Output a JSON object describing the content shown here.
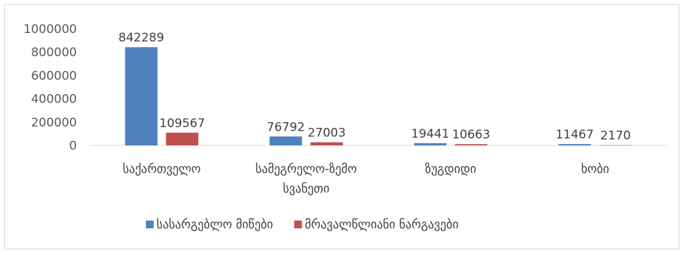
{
  "chart_data": {
    "type": "bar",
    "categories": [
      [
        "საქართველო"
      ],
      [
        "სამეგრელო-ზემო",
        "სვანეთი"
      ],
      [
        "ზუგდიდი"
      ],
      [
        "ხობი"
      ]
    ],
    "series": [
      {
        "name": "სასარგებლო მიწები",
        "color": "#4f81bd",
        "values": [
          842289,
          76792,
          19441,
          11467
        ]
      },
      {
        "name": "მრავალწლიანი ნარგავები",
        "color": "#c0504d",
        "values": [
          109567,
          27003,
          10663,
          2170
        ]
      }
    ],
    "ylim": [
      0,
      1000000
    ],
    "yticks": [
      0,
      200000,
      400000,
      600000,
      800000,
      1000000
    ],
    "grid": false,
    "legend": "bottom"
  }
}
